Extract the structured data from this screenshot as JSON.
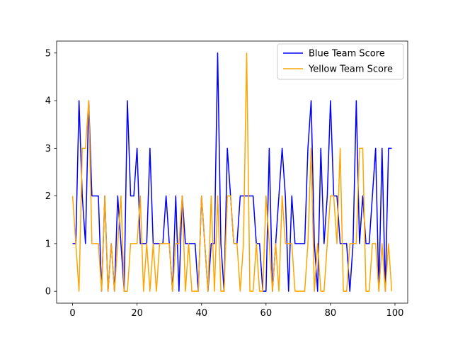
{
  "chart_data": {
    "type": "line",
    "title": "",
    "xlabel": "",
    "ylabel": "",
    "xlim": [
      -4.95,
      103.95
    ],
    "ylim": [
      -0.25,
      5.25
    ],
    "x_ticks": [
      0,
      20,
      40,
      60,
      80,
      100
    ],
    "y_ticks": [
      0,
      1,
      2,
      3,
      4,
      5
    ],
    "grid": false,
    "legend_position": "top-right",
    "x": [
      0,
      1,
      2,
      3,
      4,
      5,
      6,
      7,
      8,
      9,
      10,
      11,
      12,
      13,
      14,
      15,
      16,
      17,
      18,
      19,
      20,
      21,
      22,
      23,
      24,
      25,
      26,
      27,
      28,
      29,
      30,
      31,
      32,
      33,
      34,
      35,
      36,
      37,
      38,
      39,
      40,
      41,
      42,
      43,
      44,
      45,
      46,
      47,
      48,
      49,
      50,
      51,
      52,
      53,
      54,
      55,
      56,
      57,
      58,
      59,
      60,
      61,
      62,
      63,
      64,
      65,
      66,
      67,
      68,
      69,
      70,
      71,
      72,
      73,
      74,
      75,
      76,
      77,
      78,
      79,
      80,
      81,
      82,
      83,
      84,
      85,
      86,
      87,
      88,
      89,
      90,
      91,
      92,
      93,
      94,
      95,
      96,
      97,
      98,
      99
    ],
    "series": [
      {
        "name": "Blue Team Score",
        "color": "#0000ff",
        "values": [
          1,
          1,
          4,
          2,
          1,
          4,
          2,
          2,
          2,
          0,
          2,
          0,
          1,
          0,
          2,
          1,
          0,
          4,
          2,
          2,
          3,
          1,
          1,
          1,
          3,
          1,
          1,
          1,
          1,
          2,
          1,
          0,
          2,
          0,
          2,
          1,
          1,
          1,
          1,
          0,
          2,
          1,
          0,
          1,
          1,
          5,
          1,
          0,
          3,
          2,
          1,
          1,
          2,
          2,
          2,
          2,
          2,
          1,
          1,
          0,
          0,
          3,
          0,
          1,
          2,
          3,
          2,
          0,
          2,
          1,
          1,
          1,
          1,
          3,
          4,
          1,
          0,
          3,
          1,
          2,
          4,
          2,
          2,
          1,
          1,
          1,
          0,
          1,
          4,
          1,
          2,
          1,
          1,
          2,
          3,
          0,
          3,
          0,
          3,
          3
        ]
      },
      {
        "name": "Yellow Team Score",
        "color": "#ffa500",
        "values": [
          2,
          1,
          0,
          3,
          3,
          4,
          1,
          1,
          1,
          0,
          2,
          0,
          1,
          0,
          1,
          2,
          0,
          0,
          1,
          1,
          1,
          2,
          0,
          1,
          0,
          1,
          0,
          1,
          1,
          1,
          1,
          0,
          1,
          1,
          2,
          0,
          1,
          0,
          0,
          0,
          2,
          1,
          0,
          2,
          0,
          2,
          0,
          0,
          2,
          2,
          1,
          1,
          0,
          1,
          5,
          0,
          0,
          1,
          0,
          0,
          2,
          1,
          0,
          1,
          0,
          2,
          1,
          1,
          1,
          0,
          0,
          0,
          0,
          1,
          3,
          0,
          1,
          0,
          0,
          1,
          2,
          2,
          1,
          3,
          0,
          0,
          1,
          1,
          1,
          3,
          3,
          0,
          0,
          1,
          1,
          0,
          1,
          0,
          1,
          0
        ]
      }
    ]
  }
}
